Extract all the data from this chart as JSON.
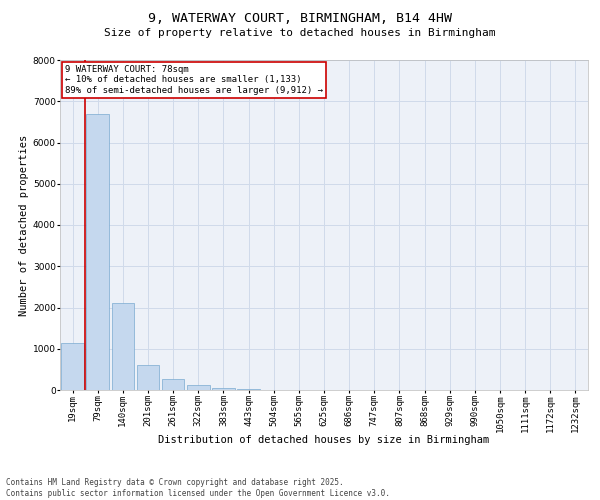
{
  "title_line1": "9, WATERWAY COURT, BIRMINGHAM, B14 4HW",
  "title_line2": "Size of property relative to detached houses in Birmingham",
  "xlabel": "Distribution of detached houses by size in Birmingham",
  "ylabel": "Number of detached properties",
  "categories": [
    "19sqm",
    "79sqm",
    "140sqm",
    "201sqm",
    "261sqm",
    "322sqm",
    "383sqm",
    "443sqm",
    "504sqm",
    "565sqm",
    "625sqm",
    "686sqm",
    "747sqm",
    "807sqm",
    "868sqm",
    "929sqm",
    "990sqm",
    "1050sqm",
    "1111sqm",
    "1172sqm",
    "1232sqm"
  ],
  "values": [
    1133,
    6700,
    2100,
    600,
    270,
    110,
    50,
    20,
    10,
    3,
    1,
    0,
    0,
    0,
    0,
    0,
    0,
    0,
    0,
    0,
    0
  ],
  "bar_color": "#c5d8ee",
  "bar_edge_color": "#7aaad0",
  "vline_x_idx": 1,
  "vline_color": "#cc0000",
  "annotation_text": "9 WATERWAY COURT: 78sqm\n← 10% of detached houses are smaller (1,133)\n89% of semi-detached houses are larger (9,912) →",
  "annotation_box_color": "#cc0000",
  "ylim": [
    0,
    8000
  ],
  "yticks": [
    0,
    1000,
    2000,
    3000,
    4000,
    5000,
    6000,
    7000,
    8000
  ],
  "grid_color": "#d0daea",
  "background_color": "#edf1f8",
  "footer_line1": "Contains HM Land Registry data © Crown copyright and database right 2025.",
  "footer_line2": "Contains public sector information licensed under the Open Government Licence v3.0.",
  "title_fontsize": 9.5,
  "subtitle_fontsize": 8,
  "xlabel_fontsize": 7.5,
  "ylabel_fontsize": 7.5,
  "tick_fontsize": 6.5,
  "annotation_fontsize": 6.5,
  "footer_fontsize": 5.5
}
